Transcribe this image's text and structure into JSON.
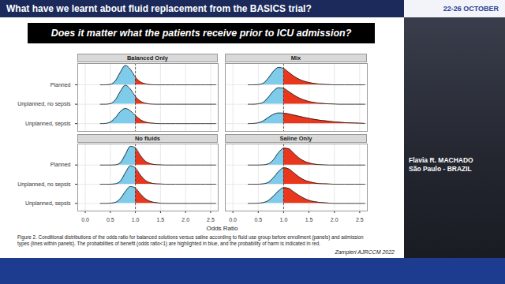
{
  "slide": {
    "title": "What have we learnt about fluid replacement from the BASICS trial?",
    "dates": "22-26 OCTOBER",
    "question": "Does it matter what the patients receive prior to ICU admission?",
    "x_label": "Odds Ratio",
    "caption": "Figure 2. Conditional distributions of the odds ratio for balanced solutions versus saline according to fluid use group before enrollment (panels) and admission types (lines within panels). The probabilities of benefit (odds ratio<1) are highlighted in blue, and the probability of harm is indicated in red.",
    "citation": "Zampieri AJRCCM 2022",
    "speaker": {
      "name": "Flavia R. MACHADO",
      "location": "São Paulo - BRAZIL"
    }
  },
  "chart_data": [
    {
      "type": "ridgeline",
      "title": "Balanced Only",
      "tick_labels": "y",
      "grid": true,
      "reference_line": 1,
      "colors": [
        "#7fcbea",
        "#e8371c"
      ],
      "xlim": [
        -0.15,
        2.65
      ],
      "xticks": [
        {
          "value": 0,
          "label": "0.0"
        },
        {
          "value": 0.5,
          "label": "0.5"
        },
        {
          "value": 1,
          "label": "1.0"
        },
        {
          "value": 1.5,
          "label": "1.5"
        },
        {
          "value": 2,
          "label": "2.0"
        },
        {
          "value": 2.5,
          "label": "2.5"
        }
      ],
      "ylim": [
        -0.4,
        3.1
      ],
      "x": [
        0.3,
        0.4,
        0.5,
        0.6,
        0.7,
        0.8,
        0.9,
        1.0,
        1.1,
        1.2,
        1.3,
        1.4,
        1.5,
        1.6,
        1.7,
        1.8,
        1.9,
        2.0,
        2.1,
        2.2,
        2.3,
        2.4,
        2.5,
        2.6
      ],
      "series": [
        {
          "name": "Planned",
          "values": [
            0,
            0,
            0.02,
            0.2,
            0.65,
            1.0,
            0.8,
            0.4,
            0.15,
            0.05,
            0.01,
            0,
            0,
            0,
            0,
            0,
            0,
            0,
            0,
            0,
            0,
            0,
            0,
            0
          ]
        },
        {
          "name": "Unplanned, no sepsis",
          "values": [
            0,
            0,
            0.03,
            0.22,
            0.66,
            0.98,
            0.78,
            0.4,
            0.16,
            0.05,
            0.01,
            0,
            0,
            0,
            0,
            0,
            0,
            0,
            0,
            0,
            0,
            0,
            0,
            0
          ]
        },
        {
          "name": "Unplanned, sepsis",
          "values": [
            0,
            0.01,
            0.08,
            0.3,
            0.62,
            0.78,
            0.66,
            0.42,
            0.2,
            0.08,
            0.03,
            0.01,
            0,
            0,
            0,
            0,
            0,
            0,
            0,
            0,
            0,
            0,
            0,
            0
          ]
        }
      ]
    },
    {
      "type": "ridgeline",
      "title": "Mix",
      "tick_labels": false,
      "grid": true,
      "reference_line": 1,
      "colors": [
        "#7fcbea",
        "#e8371c"
      ],
      "xlim": [
        -0.15,
        2.65
      ],
      "xticks": [
        {
          "value": 0,
          "label": "0.0"
        },
        {
          "value": 0.5,
          "label": "0.5"
        },
        {
          "value": 1,
          "label": "1.0"
        },
        {
          "value": 1.5,
          "label": "1.5"
        },
        {
          "value": 2,
          "label": "2.0"
        },
        {
          "value": 2.5,
          "label": "2.5"
        }
      ],
      "ylim": [
        -0.4,
        3.1
      ],
      "x": [
        0.3,
        0.4,
        0.5,
        0.6,
        0.7,
        0.8,
        0.9,
        1.0,
        1.1,
        1.2,
        1.3,
        1.4,
        1.5,
        1.6,
        1.7,
        1.8,
        1.9,
        2.0,
        2.1,
        2.2,
        2.3,
        2.4,
        2.5,
        2.6
      ],
      "series": [
        {
          "name": "Planned",
          "values": [
            0,
            0,
            0.01,
            0.08,
            0.35,
            0.7,
            0.9,
            0.85,
            0.65,
            0.45,
            0.3,
            0.19,
            0.12,
            0.07,
            0.04,
            0.02,
            0.01,
            0,
            0,
            0,
            0,
            0,
            0,
            0
          ]
        },
        {
          "name": "Unplanned, no sepsis",
          "values": [
            0,
            0,
            0.02,
            0.1,
            0.36,
            0.68,
            0.85,
            0.82,
            0.66,
            0.48,
            0.33,
            0.22,
            0.14,
            0.09,
            0.05,
            0.03,
            0.02,
            0.01,
            0,
            0,
            0,
            0,
            0,
            0
          ]
        },
        {
          "name": "Unplanned, sepsis",
          "values": [
            0,
            0.01,
            0.04,
            0.14,
            0.32,
            0.48,
            0.55,
            0.54,
            0.5,
            0.44,
            0.38,
            0.32,
            0.27,
            0.22,
            0.18,
            0.15,
            0.12,
            0.09,
            0.07,
            0.05,
            0.04,
            0.03,
            0.02,
            0.01
          ]
        }
      ]
    },
    {
      "type": "ridgeline",
      "title": "No fluids",
      "tick_labels": true,
      "grid": true,
      "reference_line": 1,
      "colors": [
        "#7fcbea",
        "#e8371c"
      ],
      "xlim": [
        -0.15,
        2.65
      ],
      "xticks": [
        {
          "value": 0,
          "label": "0.0"
        },
        {
          "value": 0.5,
          "label": "0.5"
        },
        {
          "value": 1,
          "label": "1.0"
        },
        {
          "value": 1.5,
          "label": "1.5"
        },
        {
          "value": 2,
          "label": "2.0"
        },
        {
          "value": 2.5,
          "label": "2.5"
        }
      ],
      "ylim": [
        -0.4,
        3.1
      ],
      "x": [
        0.3,
        0.4,
        0.5,
        0.6,
        0.7,
        0.8,
        0.9,
        1.0,
        1.1,
        1.2,
        1.3,
        1.4,
        1.5,
        1.6,
        1.7,
        1.8,
        1.9,
        2.0,
        2.1,
        2.2,
        2.3,
        2.4,
        2.5,
        2.6
      ],
      "series": [
        {
          "name": "Planned",
          "values": [
            0,
            0,
            0,
            0.01,
            0.12,
            0.55,
            0.98,
            0.9,
            0.5,
            0.2,
            0.07,
            0.02,
            0.01,
            0,
            0,
            0,
            0,
            0,
            0,
            0,
            0,
            0,
            0,
            0
          ]
        },
        {
          "name": "Unplanned, no sepsis",
          "values": [
            0,
            0,
            0,
            0.02,
            0.16,
            0.6,
            0.96,
            0.85,
            0.48,
            0.2,
            0.07,
            0.02,
            0.01,
            0,
            0,
            0,
            0,
            0,
            0,
            0,
            0,
            0,
            0,
            0
          ]
        },
        {
          "name": "Unplanned, sepsis",
          "values": [
            0,
            0,
            0.01,
            0.05,
            0.25,
            0.62,
            0.88,
            0.8,
            0.5,
            0.24,
            0.1,
            0.04,
            0.01,
            0,
            0,
            0,
            0,
            0,
            0,
            0,
            0,
            0,
            0,
            0
          ]
        }
      ]
    },
    {
      "type": "ridgeline",
      "title": "Saline Only",
      "tick_labels": "x",
      "grid": true,
      "reference_line": 1,
      "colors": [
        "#7fcbea",
        "#e8371c"
      ],
      "xlim": [
        -0.15,
        2.65
      ],
      "xticks": [
        {
          "value": 0,
          "label": "0.0"
        },
        {
          "value": 0.5,
          "label": "0.5"
        },
        {
          "value": 1,
          "label": "1.0"
        },
        {
          "value": 1.5,
          "label": "1.5"
        },
        {
          "value": 2,
          "label": "2.0"
        },
        {
          "value": 2.5,
          "label": "2.5"
        }
      ],
      "ylim": [
        -0.4,
        3.1
      ],
      "x": [
        0.3,
        0.4,
        0.5,
        0.6,
        0.7,
        0.8,
        0.9,
        1.0,
        1.1,
        1.2,
        1.3,
        1.4,
        1.5,
        1.6,
        1.7,
        1.8,
        1.9,
        2.0,
        2.1,
        2.2,
        2.3,
        2.4,
        2.5,
        2.6
      ],
      "series": [
        {
          "name": "Planned",
          "values": [
            0,
            0,
            0,
            0.01,
            0.06,
            0.28,
            0.65,
            0.88,
            0.85,
            0.62,
            0.38,
            0.21,
            0.11,
            0.05,
            0.02,
            0.01,
            0,
            0,
            0,
            0,
            0,
            0,
            0,
            0
          ]
        },
        {
          "name": "Unplanned, no sepsis",
          "values": [
            0,
            0,
            0,
            0.02,
            0.1,
            0.34,
            0.66,
            0.86,
            0.8,
            0.6,
            0.39,
            0.23,
            0.13,
            0.07,
            0.03,
            0.02,
            0.01,
            0,
            0,
            0,
            0,
            0,
            0,
            0
          ]
        },
        {
          "name": "Unplanned, sepsis",
          "values": [
            0,
            0,
            0.01,
            0.04,
            0.15,
            0.38,
            0.65,
            0.82,
            0.78,
            0.6,
            0.42,
            0.27,
            0.16,
            0.09,
            0.05,
            0.03,
            0.01,
            0,
            0,
            0,
            0,
            0,
            0,
            0
          ]
        }
      ]
    }
  ]
}
